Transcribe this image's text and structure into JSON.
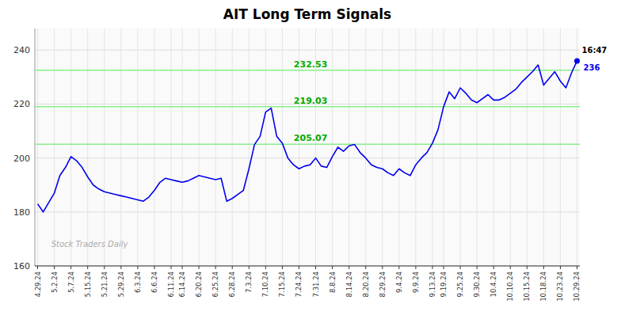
{
  "chart_data": {
    "type": "line",
    "title": "AIT Long Term Signals",
    "color": "#0000ee",
    "grid": true,
    "ylim": [
      160,
      248
    ],
    "yticks": [
      160,
      180,
      200,
      220,
      240
    ],
    "categories": [
      "4.29.24",
      null,
      null,
      "5.2.24",
      null,
      null,
      "5.7.24",
      null,
      null,
      "5.15.24",
      null,
      null,
      "5.21.24",
      null,
      null,
      "5.29.24",
      null,
      null,
      "6.3.24",
      null,
      null,
      "6.6.24",
      null,
      null,
      "6.11.24",
      null,
      "6.14.24",
      null,
      null,
      "6.20.24",
      null,
      null,
      "6.25.24",
      null,
      null,
      "6.28.24",
      null,
      null,
      "7.3.24",
      null,
      null,
      "7.10.24",
      null,
      null,
      "7.15.24",
      null,
      null,
      "7.24.24",
      null,
      null,
      "7.31.24",
      null,
      null,
      "8.8.24",
      null,
      null,
      "8.14.24",
      null,
      null,
      "8.20.24",
      null,
      null,
      "8.29.24",
      null,
      null,
      "9.4.24",
      null,
      null,
      "9.9.24",
      null,
      null,
      "9.13.24",
      null,
      "9.19.24",
      null,
      null,
      "9.25.24",
      null,
      null,
      "9.30.24",
      null,
      null,
      "10.4.24",
      null,
      null,
      "10.10.24",
      null,
      null,
      "10.15.24",
      null,
      null,
      "10.18.24",
      null,
      null,
      "10.23.24",
      null,
      null,
      "10.29.24"
    ],
    "values": [
      183.0,
      180.0,
      183.5,
      187.0,
      193.5,
      196.5,
      200.5,
      199.0,
      196.5,
      193.0,
      190.0,
      188.5,
      187.5,
      187.0,
      186.5,
      186.0,
      185.5,
      185.0,
      184.5,
      184.0,
      185.5,
      188.0,
      191.0,
      192.5,
      192.0,
      191.5,
      191.0,
      191.5,
      192.5,
      193.5,
      193.0,
      192.5,
      192.0,
      192.5,
      184.0,
      185.0,
      186.5,
      188.0,
      196.0,
      205.0,
      208.0,
      217.0,
      218.5,
      208.0,
      205.5,
      200.0,
      197.5,
      196.0,
      197.0,
      197.5,
      200.0,
      197.0,
      196.5,
      200.5,
      204.0,
      202.5,
      204.5,
      205.0,
      202.0,
      200.0,
      197.5,
      196.5,
      196.0,
      194.5,
      193.5,
      196.0,
      194.5,
      193.5,
      197.5,
      200.0,
      202.0,
      205.5,
      210.5,
      219.0,
      224.5,
      222.0,
      226.0,
      224.0,
      221.5,
      220.5,
      222.0,
      223.5,
      221.5,
      221.5,
      222.5,
      224.0,
      225.5,
      228.0,
      230.0,
      232.0,
      234.5,
      227.0,
      229.5,
      232.0,
      228.5,
      226.0,
      231.5,
      236.0
    ],
    "reference_lines": [
      {
        "value": 205.07,
        "label": "205.07",
        "color": "#88ee88",
        "label_color": "#00aa00"
      },
      {
        "value": 219.03,
        "label": "219.03",
        "color": "#88ee88",
        "label_color": "#00aa00"
      },
      {
        "value": 232.53,
        "label": "232.53",
        "color": "#88ee88",
        "label_color": "#00aa00"
      }
    ],
    "watermark": "Stock Traders Daily",
    "end_labels": [
      "16:47",
      "236"
    ]
  }
}
